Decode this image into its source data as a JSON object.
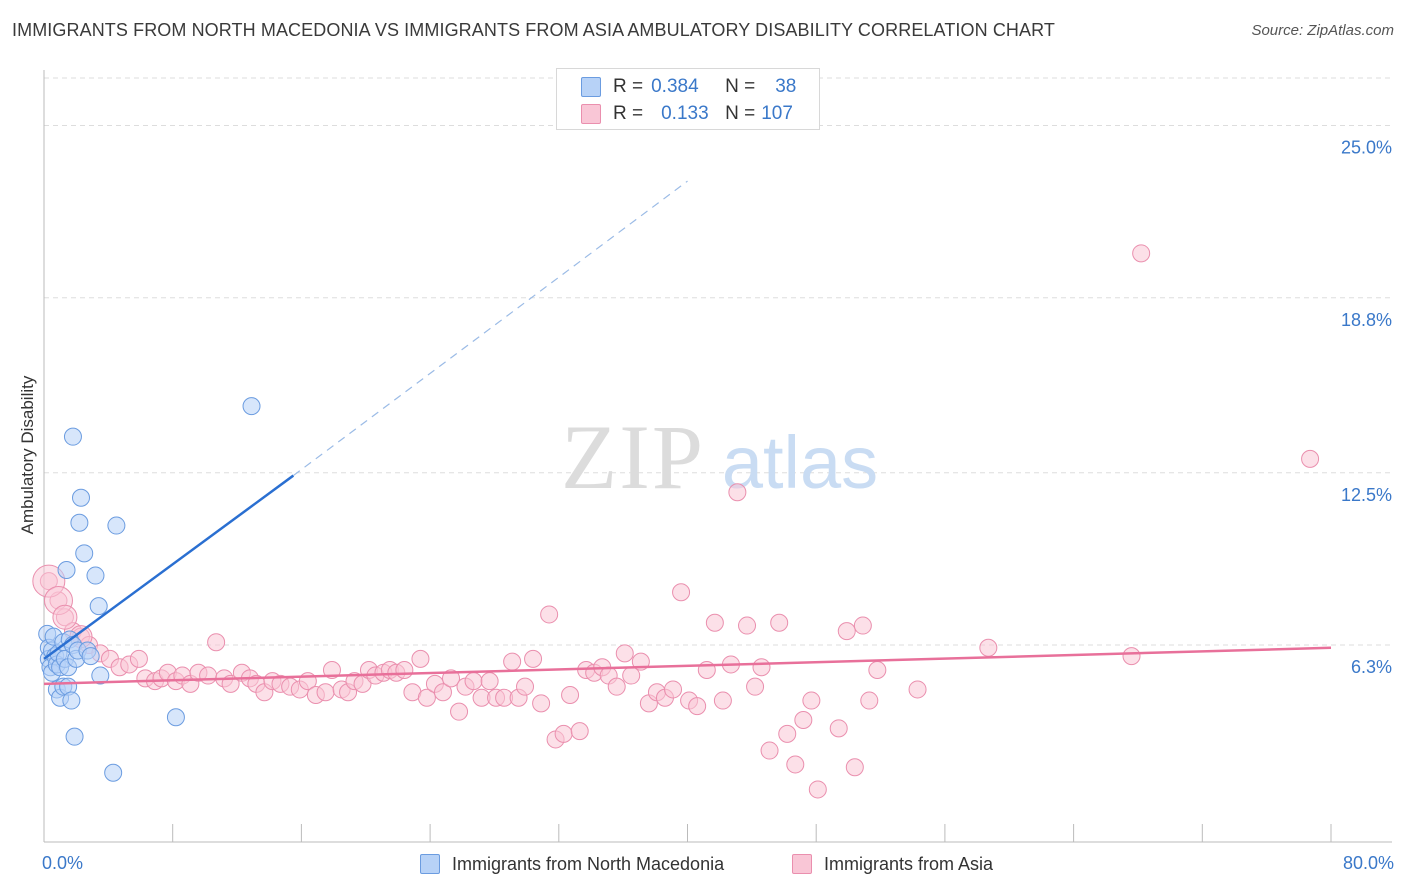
{
  "header": {
    "title": "IMMIGRANTS FROM NORTH MACEDONIA VS IMMIGRANTS FROM ASIA AMBULATORY DISABILITY CORRELATION CHART",
    "source": "Source: ZipAtlas.com"
  },
  "watermark": {
    "zip": "ZIP",
    "atlas": "atlas"
  },
  "legend": {
    "r_label": "R =",
    "n_label": "N =",
    "series1": {
      "r": "0.384",
      "n": "38"
    },
    "series2": {
      "r": "0.133",
      "n": "107"
    }
  },
  "colors": {
    "blue_fill": "#b7d2f7",
    "blue_stroke": "#6b9ce0",
    "blue_line": "#2a6fd1",
    "pink_fill": "#f9c6d6",
    "pink_stroke": "#ea8fae",
    "pink_line": "#e8709a",
    "tick_text": "#3a78c9",
    "grid": "#dddddd"
  },
  "chart_data": {
    "type": "scatter",
    "title": "IMMIGRANTS FROM NORTH MACEDONIA VS IMMIGRANTS FROM ASIA AMBULATORY DISABILITY CORRELATION CHART",
    "xlabel": "",
    "ylabel": "Ambulatory Disability",
    "xlim": [
      0,
      80
    ],
    "ylim": [
      0,
      27
    ],
    "x_tick_labels": [
      "0.0%",
      "80.0%"
    ],
    "y_ticks": [
      6.3,
      12.5,
      18.8,
      25.0
    ],
    "y_tick_labels": [
      "6.3%",
      "12.5%",
      "18.8%",
      "25.0%"
    ],
    "series": [
      {
        "name": "Immigrants from North Macedonia",
        "color": "blue",
        "r": 0.384,
        "n": 38,
        "trend": {
          "x0": 0,
          "y0": 5.8,
          "x1": 15.5,
          "y1": 12.4,
          "dash_to_x": 40,
          "dash_to_y": 23.0
        },
        "points": [
          [
            0.2,
            6.7
          ],
          [
            0.3,
            6.2
          ],
          [
            0.3,
            5.8
          ],
          [
            0.4,
            5.5
          ],
          [
            0.5,
            6.1
          ],
          [
            0.5,
            5.3
          ],
          [
            0.6,
            6.6
          ],
          [
            0.7,
            5.9
          ],
          [
            0.8,
            5.6
          ],
          [
            0.8,
            4.7
          ],
          [
            0.9,
            6.0
          ],
          [
            1.0,
            5.5
          ],
          [
            1.0,
            4.4
          ],
          [
            1.2,
            6.4
          ],
          [
            1.2,
            4.8
          ],
          [
            1.3,
            5.8
          ],
          [
            1.4,
            9.0
          ],
          [
            1.5,
            5.5
          ],
          [
            1.5,
            4.8
          ],
          [
            1.6,
            6.5
          ],
          [
            1.7,
            4.3
          ],
          [
            1.8,
            6.3
          ],
          [
            1.8,
            13.8
          ],
          [
            1.9,
            3.0
          ],
          [
            2.0,
            5.8
          ],
          [
            2.1,
            6.1
          ],
          [
            2.2,
            10.7
          ],
          [
            2.3,
            11.6
          ],
          [
            2.5,
            9.6
          ],
          [
            2.7,
            6.1
          ],
          [
            2.9,
            5.9
          ],
          [
            3.2,
            8.8
          ],
          [
            3.4,
            7.7
          ],
          [
            3.5,
            5.2
          ],
          [
            4.3,
            1.7
          ],
          [
            4.5,
            10.6
          ],
          [
            8.2,
            3.7
          ],
          [
            12.9,
            14.9
          ]
        ]
      },
      {
        "name": "Immigrants from Asia",
        "color": "pink",
        "r": 0.133,
        "n": 107,
        "trend": {
          "x0": 0,
          "y0": 4.9,
          "x1": 80,
          "y1": 6.2
        },
        "points": [
          [
            0.3,
            8.6
          ],
          [
            0.9,
            7.9
          ],
          [
            1.3,
            7.3
          ],
          [
            1.8,
            6.8
          ],
          [
            2.3,
            6.6
          ],
          [
            2.8,
            6.3
          ],
          [
            3.5,
            6.0
          ],
          [
            4.1,
            5.8
          ],
          [
            4.7,
            5.5
          ],
          [
            5.3,
            5.6
          ],
          [
            5.9,
            5.8
          ],
          [
            6.3,
            5.1
          ],
          [
            6.9,
            5.0
          ],
          [
            7.3,
            5.1
          ],
          [
            7.7,
            5.3
          ],
          [
            8.2,
            5.0
          ],
          [
            8.6,
            5.2
          ],
          [
            9.1,
            4.9
          ],
          [
            9.6,
            5.3
          ],
          [
            10.2,
            5.2
          ],
          [
            10.7,
            6.4
          ],
          [
            11.2,
            5.1
          ],
          [
            11.6,
            4.9
          ],
          [
            12.3,
            5.3
          ],
          [
            12.8,
            5.1
          ],
          [
            13.2,
            4.9
          ],
          [
            13.7,
            4.6
          ],
          [
            14.2,
            5.0
          ],
          [
            14.7,
            4.9
          ],
          [
            15.3,
            4.8
          ],
          [
            15.9,
            4.7
          ],
          [
            16.4,
            5.0
          ],
          [
            16.9,
            4.5
          ],
          [
            17.5,
            4.6
          ],
          [
            17.9,
            5.4
          ],
          [
            18.5,
            4.7
          ],
          [
            18.9,
            4.6
          ],
          [
            19.3,
            5.0
          ],
          [
            19.8,
            4.9
          ],
          [
            20.2,
            5.4
          ],
          [
            20.6,
            5.2
          ],
          [
            21.1,
            5.3
          ],
          [
            21.5,
            5.4
          ],
          [
            21.9,
            5.3
          ],
          [
            22.4,
            5.4
          ],
          [
            22.9,
            4.6
          ],
          [
            23.4,
            5.8
          ],
          [
            23.8,
            4.4
          ],
          [
            24.3,
            4.9
          ],
          [
            24.8,
            4.6
          ],
          [
            25.3,
            5.1
          ],
          [
            25.8,
            3.9
          ],
          [
            26.2,
            4.8
          ],
          [
            26.7,
            5.0
          ],
          [
            27.2,
            4.4
          ],
          [
            27.7,
            5.0
          ],
          [
            28.1,
            4.4
          ],
          [
            28.6,
            4.4
          ],
          [
            29.1,
            5.7
          ],
          [
            29.5,
            4.4
          ],
          [
            29.9,
            4.8
          ],
          [
            30.4,
            5.8
          ],
          [
            30.9,
            4.2
          ],
          [
            31.4,
            7.4
          ],
          [
            31.8,
            2.9
          ],
          [
            32.3,
            3.1
          ],
          [
            32.7,
            4.5
          ],
          [
            33.3,
            3.2
          ],
          [
            33.7,
            5.4
          ],
          [
            34.2,
            5.3
          ],
          [
            34.7,
            5.5
          ],
          [
            35.1,
            5.2
          ],
          [
            35.6,
            4.8
          ],
          [
            36.1,
            6.0
          ],
          [
            36.5,
            5.2
          ],
          [
            37.1,
            5.7
          ],
          [
            37.6,
            4.2
          ],
          [
            38.1,
            4.6
          ],
          [
            38.6,
            4.4
          ],
          [
            39.1,
            4.7
          ],
          [
            39.6,
            8.2
          ],
          [
            40.1,
            4.3
          ],
          [
            40.6,
            4.1
          ],
          [
            41.2,
            5.4
          ],
          [
            41.7,
            7.1
          ],
          [
            42.2,
            4.3
          ],
          [
            42.7,
            5.6
          ],
          [
            43.1,
            11.8
          ],
          [
            43.7,
            7.0
          ],
          [
            44.2,
            4.8
          ],
          [
            44.6,
            5.5
          ],
          [
            45.1,
            2.5
          ],
          [
            45.7,
            7.1
          ],
          [
            46.2,
            3.1
          ],
          [
            46.7,
            2.0
          ],
          [
            47.2,
            3.6
          ],
          [
            47.7,
            4.3
          ],
          [
            48.1,
            1.1
          ],
          [
            49.4,
            3.3
          ],
          [
            49.9,
            6.8
          ],
          [
            50.4,
            1.9
          ],
          [
            50.9,
            7.0
          ],
          [
            51.3,
            4.3
          ],
          [
            51.8,
            5.4
          ],
          [
            54.3,
            4.7
          ],
          [
            58.7,
            6.2
          ],
          [
            67.6,
            5.9
          ],
          [
            68.2,
            20.4
          ],
          [
            78.7,
            13.0
          ]
        ]
      }
    ]
  },
  "bottom_legend": {
    "series1": "Immigrants from North Macedonia",
    "series2": "Immigrants from Asia"
  }
}
